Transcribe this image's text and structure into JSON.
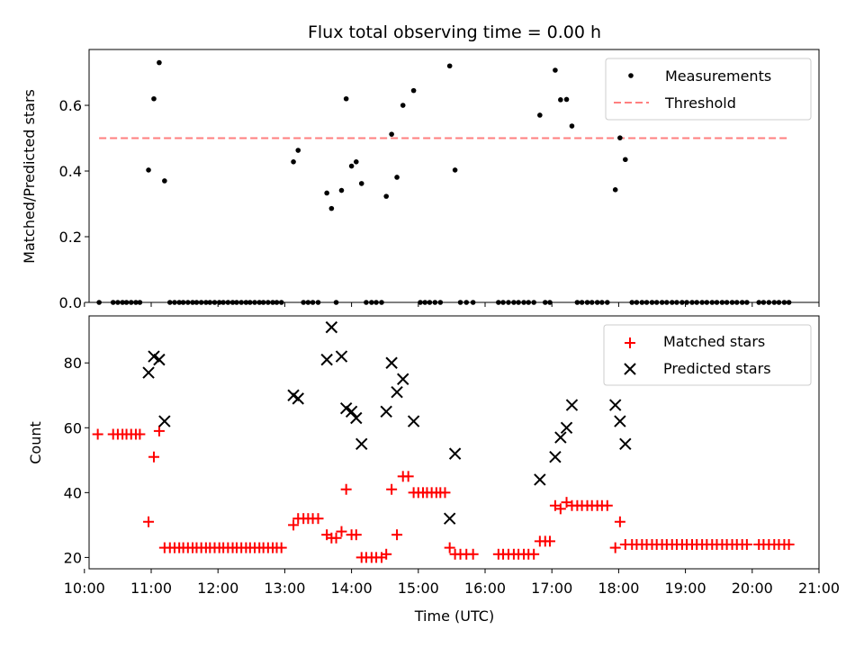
{
  "chart_data": [
    {
      "type": "scatter",
      "title": "Flux total observing time = 0.00 h",
      "xlabel": "",
      "ylabel": "Matched/Predicted stars",
      "xlim": [
        10.07,
        21.0
      ],
      "ylim": [
        0,
        0.77
      ],
      "yticks": [
        0.0,
        0.2,
        0.4,
        0.6
      ],
      "ytick_labels": [
        "0.0",
        "0.2",
        "0.4",
        "0.6"
      ],
      "legend_position": "top-right",
      "legend": [
        {
          "label": "Measurements",
          "marker": "dot",
          "color": "#000000"
        },
        {
          "label": "Threshold",
          "marker": "dashed-line",
          "color": "#ff7f7f"
        }
      ],
      "threshold": {
        "y": 0.5,
        "x_start": 10.22,
        "x_end": 20.55
      },
      "points": [
        [
          10.22,
          0
        ],
        [
          10.43,
          0
        ],
        [
          10.5,
          0
        ],
        [
          10.57,
          0
        ],
        [
          10.63,
          0
        ],
        [
          10.7,
          0
        ],
        [
          10.77,
          0
        ],
        [
          10.83,
          0
        ],
        [
          10.96,
          0.403
        ],
        [
          11.04,
          0.62
        ],
        [
          11.12,
          0.73
        ],
        [
          11.2,
          0.37
        ],
        [
          11.28,
          0
        ],
        [
          11.35,
          0
        ],
        [
          11.42,
          0
        ],
        [
          11.48,
          0
        ],
        [
          11.55,
          0
        ],
        [
          11.62,
          0
        ],
        [
          11.68,
          0
        ],
        [
          11.75,
          0
        ],
        [
          11.82,
          0
        ],
        [
          11.88,
          0
        ],
        [
          11.95,
          0
        ],
        [
          12.02,
          0
        ],
        [
          12.08,
          0
        ],
        [
          12.15,
          0
        ],
        [
          12.22,
          0
        ],
        [
          12.28,
          0
        ],
        [
          12.35,
          0
        ],
        [
          12.42,
          0
        ],
        [
          12.48,
          0
        ],
        [
          12.55,
          0
        ],
        [
          12.62,
          0
        ],
        [
          12.68,
          0
        ],
        [
          12.75,
          0
        ],
        [
          12.82,
          0
        ],
        [
          12.88,
          0
        ],
        [
          12.95,
          0
        ],
        [
          13.13,
          0.428
        ],
        [
          13.2,
          0.463
        ],
        [
          13.28,
          0
        ],
        [
          13.35,
          0
        ],
        [
          13.42,
          0
        ],
        [
          13.5,
          0
        ],
        [
          13.63,
          0.333
        ],
        [
          13.7,
          0.286
        ],
        [
          13.77,
          0
        ],
        [
          13.85,
          0.341
        ],
        [
          13.92,
          0.62
        ],
        [
          14.0,
          0.415
        ],
        [
          14.07,
          0.428
        ],
        [
          14.15,
          0.362
        ],
        [
          14.22,
          0
        ],
        [
          14.3,
          0
        ],
        [
          14.37,
          0
        ],
        [
          14.45,
          0
        ],
        [
          14.52,
          0.323
        ],
        [
          14.6,
          0.512
        ],
        [
          14.68,
          0.381
        ],
        [
          14.77,
          0.6
        ],
        [
          14.93,
          0.645
        ],
        [
          15.03,
          0
        ],
        [
          15.1,
          0
        ],
        [
          15.17,
          0
        ],
        [
          15.25,
          0
        ],
        [
          15.33,
          0
        ],
        [
          15.47,
          0.72
        ],
        [
          15.55,
          0.403
        ],
        [
          15.63,
          0
        ],
        [
          15.72,
          0
        ],
        [
          15.82,
          0
        ],
        [
          16.2,
          0
        ],
        [
          16.27,
          0
        ],
        [
          16.35,
          0
        ],
        [
          16.43,
          0
        ],
        [
          16.5,
          0
        ],
        [
          16.58,
          0
        ],
        [
          16.65,
          0
        ],
        [
          16.73,
          0
        ],
        [
          16.82,
          0.57
        ],
        [
          16.9,
          0
        ],
        [
          16.97,
          0
        ],
        [
          17.05,
          0.707
        ],
        [
          17.13,
          0.617
        ],
        [
          17.22,
          0.618
        ],
        [
          17.3,
          0.537
        ],
        [
          17.38,
          0
        ],
        [
          17.45,
          0
        ],
        [
          17.53,
          0
        ],
        [
          17.6,
          0
        ],
        [
          17.68,
          0
        ],
        [
          17.75,
          0
        ],
        [
          17.83,
          0
        ],
        [
          17.95,
          0.343
        ],
        [
          18.02,
          0.501
        ],
        [
          18.1,
          0.435
        ],
        [
          18.2,
          0
        ],
        [
          18.27,
          0
        ],
        [
          18.35,
          0
        ],
        [
          18.42,
          0
        ],
        [
          18.5,
          0
        ],
        [
          18.57,
          0
        ],
        [
          18.65,
          0
        ],
        [
          18.72,
          0
        ],
        [
          18.8,
          0
        ],
        [
          18.87,
          0
        ],
        [
          18.95,
          0
        ],
        [
          19.02,
          0
        ],
        [
          19.1,
          0
        ],
        [
          19.17,
          0
        ],
        [
          19.25,
          0
        ],
        [
          19.32,
          0
        ],
        [
          19.4,
          0
        ],
        [
          19.47,
          0
        ],
        [
          19.55,
          0
        ],
        [
          19.62,
          0
        ],
        [
          19.7,
          0
        ],
        [
          19.77,
          0
        ],
        [
          19.85,
          0
        ],
        [
          19.92,
          0
        ],
        [
          20.1,
          0
        ],
        [
          20.17,
          0
        ],
        [
          20.25,
          0
        ],
        [
          20.33,
          0
        ],
        [
          20.4,
          0
        ],
        [
          20.48,
          0
        ],
        [
          20.55,
          0
        ]
      ]
    },
    {
      "type": "scatter",
      "title": "",
      "xlabel": "Time (UTC)",
      "ylabel": "Count",
      "xlim": [
        10.07,
        21.0
      ],
      "ylim": [
        16.5,
        94.5
      ],
      "yticks": [
        20,
        40,
        60,
        80
      ],
      "ytick_labels": [
        "20",
        "40",
        "60",
        "80"
      ],
      "xticks": [
        10,
        11,
        12,
        13,
        14,
        15,
        16,
        17,
        18,
        19,
        20,
        21
      ],
      "xtick_labels": [
        "10:00",
        "11:00",
        "12:00",
        "13:00",
        "14:00",
        "15:00",
        "16:00",
        "17:00",
        "18:00",
        "19:00",
        "20:00",
        "21:00"
      ],
      "legend_position": "top-right",
      "series": [
        {
          "name": "Matched stars",
          "marker": "plus",
          "color": "#ff0000",
          "points": [
            [
              10.2,
              58
            ],
            [
              10.43,
              58
            ],
            [
              10.5,
              58
            ],
            [
              10.57,
              58
            ],
            [
              10.63,
              58
            ],
            [
              10.7,
              58
            ],
            [
              10.77,
              58
            ],
            [
              10.83,
              58
            ],
            [
              10.96,
              31
            ],
            [
              11.04,
              51
            ],
            [
              11.12,
              59
            ],
            [
              11.2,
              23
            ],
            [
              11.28,
              23
            ],
            [
              11.35,
              23
            ],
            [
              11.42,
              23
            ],
            [
              11.48,
              23
            ],
            [
              11.55,
              23
            ],
            [
              11.62,
              23
            ],
            [
              11.68,
              23
            ],
            [
              11.75,
              23
            ],
            [
              11.82,
              23
            ],
            [
              11.88,
              23
            ],
            [
              11.95,
              23
            ],
            [
              12.02,
              23
            ],
            [
              12.08,
              23
            ],
            [
              12.15,
              23
            ],
            [
              12.22,
              23
            ],
            [
              12.28,
              23
            ],
            [
              12.35,
              23
            ],
            [
              12.42,
              23
            ],
            [
              12.48,
              23
            ],
            [
              12.55,
              23
            ],
            [
              12.62,
              23
            ],
            [
              12.68,
              23
            ],
            [
              12.75,
              23
            ],
            [
              12.82,
              23
            ],
            [
              12.88,
              23
            ],
            [
              12.95,
              23
            ],
            [
              13.13,
              30
            ],
            [
              13.2,
              32
            ],
            [
              13.28,
              32
            ],
            [
              13.35,
              32
            ],
            [
              13.42,
              32
            ],
            [
              13.5,
              32
            ],
            [
              13.63,
              27
            ],
            [
              13.7,
              26
            ],
            [
              13.77,
              26
            ],
            [
              13.85,
              28
            ],
            [
              13.92,
              41
            ],
            [
              14.0,
              27
            ],
            [
              14.07,
              27
            ],
            [
              14.15,
              20
            ],
            [
              14.22,
              20
            ],
            [
              14.3,
              20
            ],
            [
              14.37,
              20
            ],
            [
              14.45,
              20
            ],
            [
              14.52,
              21
            ],
            [
              14.6,
              41
            ],
            [
              14.68,
              27
            ],
            [
              14.77,
              45
            ],
            [
              14.85,
              45
            ],
            [
              14.93,
              40
            ],
            [
              15.0,
              40
            ],
            [
              15.07,
              40
            ],
            [
              15.13,
              40
            ],
            [
              15.2,
              40
            ],
            [
              15.27,
              40
            ],
            [
              15.33,
              40
            ],
            [
              15.4,
              40
            ],
            [
              15.47,
              23
            ],
            [
              15.55,
              21
            ],
            [
              15.63,
              21
            ],
            [
              15.72,
              21
            ],
            [
              15.82,
              21
            ],
            [
              16.2,
              21
            ],
            [
              16.27,
              21
            ],
            [
              16.35,
              21
            ],
            [
              16.43,
              21
            ],
            [
              16.5,
              21
            ],
            [
              16.58,
              21
            ],
            [
              16.65,
              21
            ],
            [
              16.73,
              21
            ],
            [
              16.82,
              25
            ],
            [
              16.9,
              25
            ],
            [
              16.97,
              25
            ],
            [
              17.05,
              36
            ],
            [
              17.13,
              35
            ],
            [
              17.22,
              37
            ],
            [
              17.3,
              36
            ],
            [
              17.38,
              36
            ],
            [
              17.45,
              36
            ],
            [
              17.53,
              36
            ],
            [
              17.6,
              36
            ],
            [
              17.68,
              36
            ],
            [
              17.75,
              36
            ],
            [
              17.83,
              36
            ],
            [
              17.95,
              23
            ],
            [
              18.02,
              31
            ],
            [
              18.1,
              24
            ],
            [
              18.2,
              24
            ],
            [
              18.27,
              24
            ],
            [
              18.35,
              24
            ],
            [
              18.42,
              24
            ],
            [
              18.5,
              24
            ],
            [
              18.57,
              24
            ],
            [
              18.65,
              24
            ],
            [
              18.72,
              24
            ],
            [
              18.8,
              24
            ],
            [
              18.87,
              24
            ],
            [
              18.95,
              24
            ],
            [
              19.02,
              24
            ],
            [
              19.1,
              24
            ],
            [
              19.17,
              24
            ],
            [
              19.25,
              24
            ],
            [
              19.32,
              24
            ],
            [
              19.4,
              24
            ],
            [
              19.47,
              24
            ],
            [
              19.55,
              24
            ],
            [
              19.62,
              24
            ],
            [
              19.7,
              24
            ],
            [
              19.77,
              24
            ],
            [
              19.85,
              24
            ],
            [
              19.92,
              24
            ],
            [
              20.1,
              24
            ],
            [
              20.17,
              24
            ],
            [
              20.25,
              24
            ],
            [
              20.33,
              24
            ],
            [
              20.4,
              24
            ],
            [
              20.48,
              24
            ],
            [
              20.55,
              24
            ]
          ]
        },
        {
          "name": "Predicted stars",
          "marker": "x",
          "color": "#000000",
          "points": [
            [
              10.96,
              77
            ],
            [
              11.04,
              82
            ],
            [
              11.12,
              81
            ],
            [
              11.2,
              62
            ],
            [
              13.13,
              70
            ],
            [
              13.2,
              69
            ],
            [
              13.63,
              81
            ],
            [
              13.7,
              91
            ],
            [
              13.85,
              82
            ],
            [
              13.92,
              66
            ],
            [
              14.0,
              65
            ],
            [
              14.07,
              63
            ],
            [
              14.15,
              55
            ],
            [
              14.52,
              65
            ],
            [
              14.6,
              80
            ],
            [
              14.68,
              71
            ],
            [
              14.77,
              75
            ],
            [
              14.93,
              62
            ],
            [
              15.47,
              32
            ],
            [
              15.55,
              52
            ],
            [
              16.82,
              44
            ],
            [
              17.05,
              51
            ],
            [
              17.13,
              57
            ],
            [
              17.22,
              60
            ],
            [
              17.3,
              67
            ],
            [
              17.95,
              67
            ],
            [
              18.02,
              62
            ],
            [
              18.1,
              55
            ]
          ]
        }
      ]
    }
  ]
}
